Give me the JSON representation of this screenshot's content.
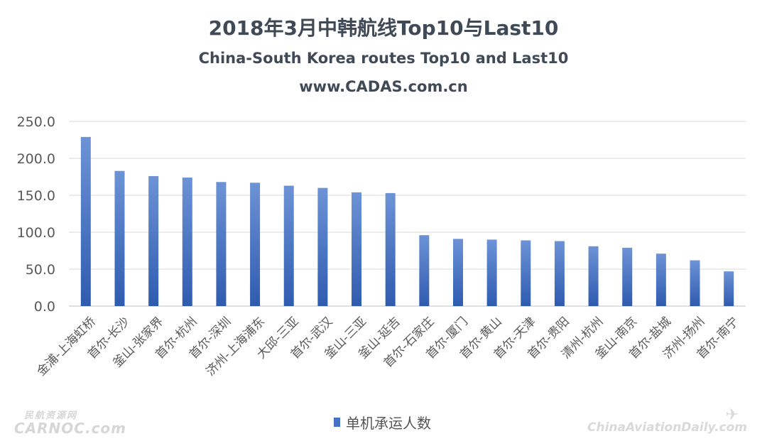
{
  "header": {
    "title_cn": "2018年3月中韩航线Top10与Last10",
    "title_en": "China-South Korea routes Top10 and Last10",
    "website": "www.CADAS.com.cn"
  },
  "watermarks": {
    "left_cn": "民航资源网",
    "left_en": "CARNOC.com",
    "right": "ChinaAviationDaily.com"
  },
  "colors": {
    "bar": "#4472c4",
    "bar_light": "#6d93d6",
    "grid": "#d9d9d9",
    "axis_text": "#595959"
  },
  "chart_data": {
    "type": "bar",
    "categories": [
      "金浦-上海虹桥",
      "首尔-长沙",
      "釜山-张家界",
      "首尔-杭州",
      "首尔-深圳",
      "济州-上海浦东",
      "大邱-三亚",
      "首尔-武汉",
      "釜山-三亚",
      "釜山-延吉",
      "首尔-石家庄",
      "首尔-厦门",
      "首尔-黄山",
      "首尔-天津",
      "首尔-贵阳",
      "清州-杭州",
      "釜山-南京",
      "首尔-盐城",
      "济州-扬州",
      "首尔-南宁"
    ],
    "series": [
      {
        "name": "单机承运人数",
        "values": [
          229,
          183,
          176,
          174,
          168,
          167,
          163,
          160,
          154,
          153,
          96,
          91,
          90,
          89,
          88,
          81,
          79,
          71,
          62,
          47
        ]
      }
    ],
    "ylim": [
      0,
      250
    ],
    "yticks": [
      "0.0",
      "50.0",
      "100.0",
      "150.0",
      "200.0",
      "250.0"
    ],
    "grid": true,
    "legend": "bottom-center"
  }
}
